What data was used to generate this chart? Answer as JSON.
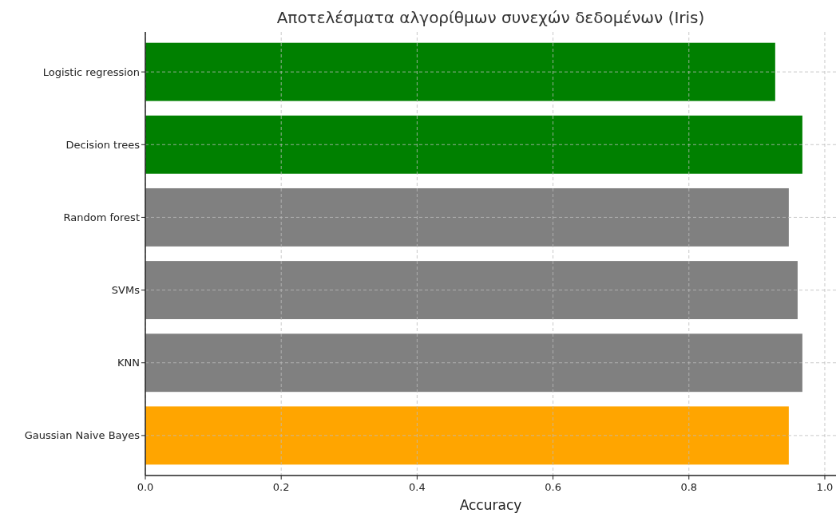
{
  "chart_data": {
    "type": "bar",
    "orientation": "horizontal",
    "title": "Αποτελέσματα αλγορίθμων συνεχών δεδομένων (Iris)",
    "xlabel": "Accuracy",
    "categories": [
      "Logistic regression",
      "Decision trees",
      "Random forest",
      "SVMs",
      "KNN",
      "Gaussian Naive Bayes"
    ],
    "values": [
      0.927,
      0.967,
      0.947,
      0.96,
      0.967,
      0.947
    ],
    "colors": [
      "#008000",
      "#008000",
      "#808080",
      "#808080",
      "#808080",
      "#ffa500"
    ],
    "xlim": [
      0,
      1.0165
    ],
    "xticks": [
      {
        "value": 0,
        "label": "0.0"
      },
      {
        "value": 0.2,
        "label": "0.2"
      },
      {
        "value": 0.4,
        "label": "0.4"
      },
      {
        "value": 0.6,
        "label": "0.6"
      },
      {
        "value": 0.8,
        "label": "0.8"
      },
      {
        "value": 1,
        "label": "1.0"
      }
    ],
    "grid": true
  }
}
